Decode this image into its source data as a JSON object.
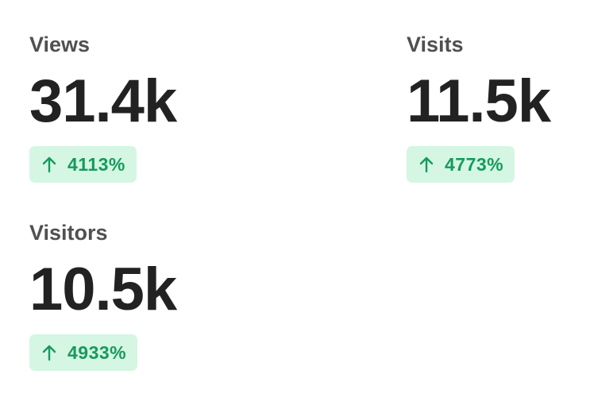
{
  "metrics": [
    {
      "label": "Views",
      "value": "31.4k",
      "change": "4113%"
    },
    {
      "label": "Visits",
      "value": "11.5k",
      "change": "4773%"
    },
    {
      "label": "Visitors",
      "value": "10.5k",
      "change": "4933%"
    }
  ]
}
